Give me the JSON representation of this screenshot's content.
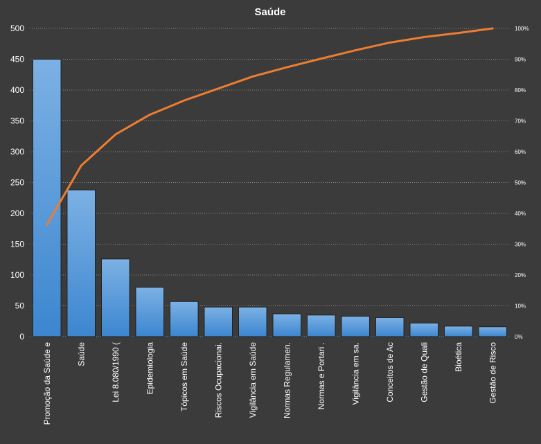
{
  "chart_data": {
    "type": "bar",
    "title": "Saúde",
    "categories": [
      "Promoção  da Saúde e",
      "Saúde",
      "Lei 8.080/1990 (",
      "Epidemiologia",
      "Tópicos em Saúde",
      "Riscos Ocupacionai.",
      "Vigilância em Saúde",
      "Normas Regulamen.",
      "Normas e Portari .",
      "Vigilância em sa.",
      "Conceitos de Ac",
      "Gestão de Quali",
      "Bioética",
      "Gestão de Risco"
    ],
    "series": [
      {
        "type": "bar",
        "values": [
          450,
          238,
          126,
          80,
          57,
          48,
          48,
          37,
          35,
          33,
          31,
          22,
          17,
          16
        ]
      },
      {
        "type": "line",
        "axis": "right",
        "values": [
          36.3,
          55.5,
          65.6,
          72.0,
          76.6,
          80.5,
          84.4,
          87.4,
          90.2,
          92.9,
          95.4,
          97.2,
          98.5,
          100
        ]
      }
    ],
    "y_left": {
      "ylim": [
        0,
        500
      ],
      "ticks": [
        "0",
        "50",
        "100",
        "150",
        "200",
        "250",
        "300",
        "350",
        "400",
        "450",
        "500"
      ]
    },
    "y_right": {
      "ylim": [
        0,
        100
      ],
      "ticks": [
        "0%",
        "10%",
        "20%",
        "30%",
        "40%",
        "50%",
        "60%",
        "70%",
        "80%",
        "90%",
        "100%"
      ]
    },
    "grid": true,
    "legend": "none",
    "colors": {
      "background": "#3b3b3b",
      "bar_top": "#7cb1e4",
      "bar_bottom": "#3c86d0",
      "bar_edge": "#1f1f1f",
      "line": "#ed7d31",
      "grid": "#8a8a8a",
      "text": "#ffffff"
    }
  }
}
